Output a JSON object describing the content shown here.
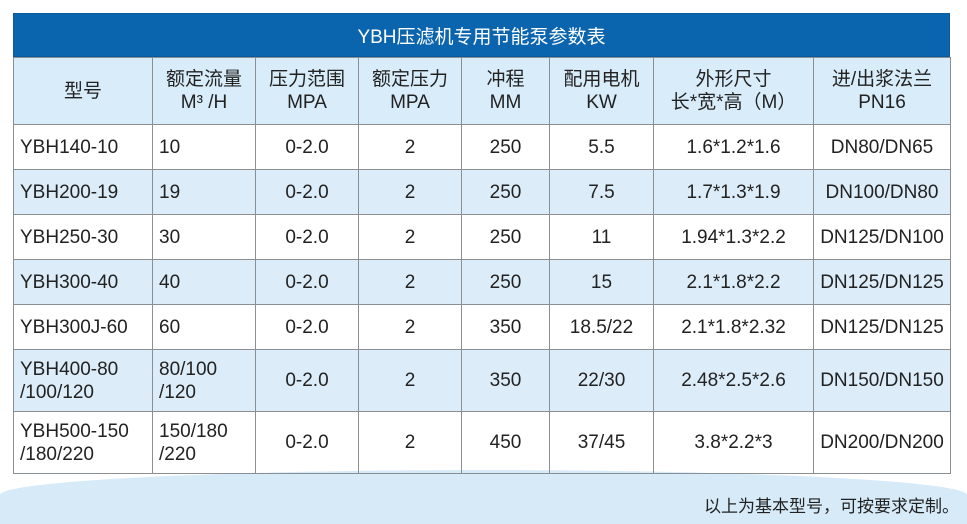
{
  "title": "YBH压滤机专用节能泵参数表",
  "columns": [
    [
      "型号"
    ],
    [
      "额定流量",
      "M³ /H"
    ],
    [
      "压力范围",
      "MPA"
    ],
    [
      "额定压力",
      "MPA"
    ],
    [
      "冲程",
      "MM"
    ],
    [
      "配用电机",
      "KW"
    ],
    [
      "外形尺寸",
      "长*宽*高（M）"
    ],
    [
      "进/出浆法兰",
      "PN16"
    ]
  ],
  "rows": [
    [
      [
        "YBH140-10"
      ],
      [
        "10"
      ],
      "0-2.0",
      "2",
      "250",
      "5.5",
      "1.6*1.2*1.6",
      "DN80/DN65"
    ],
    [
      [
        "YBH200-19"
      ],
      [
        "19"
      ],
      "0-2.0",
      "2",
      "250",
      "7.5",
      "1.7*1.3*1.9",
      "DN100/DN80"
    ],
    [
      [
        "YBH250-30"
      ],
      [
        "30"
      ],
      "0-2.0",
      "2",
      "250",
      "11",
      "1.94*1.3*2.2",
      "DN125/DN100"
    ],
    [
      [
        "YBH300-40"
      ],
      [
        "40"
      ],
      "0-2.0",
      "2",
      "250",
      "15",
      "2.1*1.8*2.2",
      "DN125/DN125"
    ],
    [
      [
        "YBH300J-60"
      ],
      [
        "60"
      ],
      "0-2.0",
      "2",
      "350",
      "18.5/22",
      "2.1*1.8*2.32",
      "DN125/DN125"
    ],
    [
      [
        "YBH400-80",
        "/100/120"
      ],
      [
        "80/100",
        "/120"
      ],
      "0-2.0",
      "2",
      "350",
      "22/30",
      "2.48*2.5*2.6",
      "DN150/DN150"
    ],
    [
      [
        "YBH500-150",
        "/180/220"
      ],
      [
        "150/180",
        "/220"
      ],
      "0-2.0",
      "2",
      "450",
      "37/45",
      "3.8*2.2*3",
      "DN200/DN200"
    ]
  ],
  "note": "以上为基本型号，可按要求定制。"
}
